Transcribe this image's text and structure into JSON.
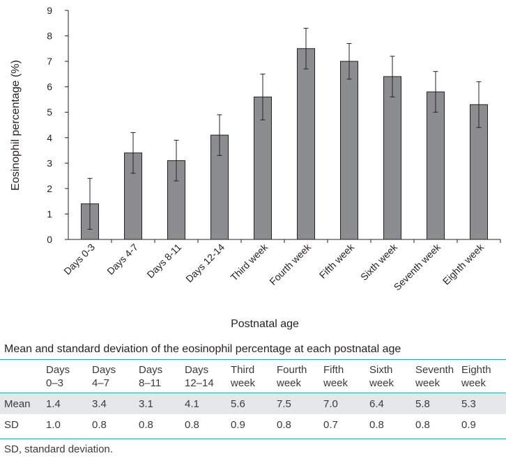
{
  "chart_data": {
    "type": "bar",
    "categories": [
      "Days 0-3",
      "Days 4-7",
      "Days 8-11",
      "Days 12-14",
      "Third week",
      "Fourth week",
      "Fifth week",
      "Sixth week",
      "Seventh week",
      "Eighth week"
    ],
    "values": [
      1.4,
      3.4,
      3.1,
      4.1,
      5.6,
      7.5,
      7.0,
      6.4,
      5.8,
      5.3
    ],
    "error_bars": [
      1.0,
      0.8,
      0.8,
      0.8,
      0.9,
      0.8,
      0.7,
      0.8,
      0.8,
      0.9
    ],
    "xlabel": "Postnatal age",
    "ylabel": "Eosinophil percentage (%)",
    "ylim": [
      0,
      9
    ],
    "yticks": [
      "0",
      "1",
      "2",
      "3",
      "4",
      "5",
      "6",
      "7",
      "8",
      "9"
    ],
    "grid": false,
    "bar_color": "#8c8d90",
    "bar_edge_color": "#231f20"
  },
  "table": {
    "title": "Mean and standard deviation of the eosinophil percentage at each postnatal age",
    "columns": [
      {
        "line1": "Days",
        "line2": "0–3"
      },
      {
        "line1": "Days",
        "line2": "4–7"
      },
      {
        "line1": "Days",
        "line2": "8–11"
      },
      {
        "line1": "Days",
        "line2": "12–14"
      },
      {
        "line1": "Third",
        "line2": "week"
      },
      {
        "line1": "Fourth",
        "line2": "week"
      },
      {
        "line1": "Fifth",
        "line2": "week"
      },
      {
        "line1": "Sixth",
        "line2": "week"
      },
      {
        "line1": "Seventh",
        "line2": "week"
      },
      {
        "line1": "Eighth",
        "line2": "week"
      }
    ],
    "rows": [
      {
        "label": "Mean",
        "values": [
          "1.4",
          "3.4",
          "3.1",
          "4.1",
          "5.6",
          "7.5",
          "7.0",
          "6.4",
          "5.8",
          "5.3"
        ]
      },
      {
        "label": "SD",
        "values": [
          "1.0",
          "0.8",
          "0.8",
          "0.8",
          "0.9",
          "0.8",
          "0.7",
          "0.8",
          "0.8",
          "0.9"
        ]
      }
    ],
    "footnote": "SD, standard deviation.",
    "rule_color": "#2aa6a0",
    "shade_color": "#e6e7e8"
  }
}
